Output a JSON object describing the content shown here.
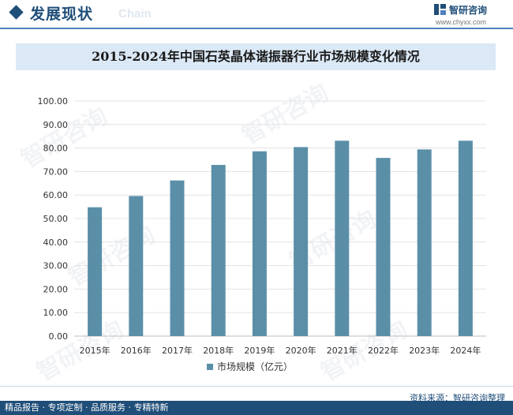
{
  "header": {
    "title": "发展现状",
    "title_en": "Chain"
  },
  "logo": {
    "name": "智研咨询",
    "url": "www.chyxx.com"
  },
  "watermark": "智研咨询",
  "chart_data": {
    "type": "bar",
    "title": "2015-2024年中国石英晶体谐振器行业市场规模变化情况",
    "categories": [
      "2015年",
      "2016年",
      "2017年",
      "2018年",
      "2019年",
      "2020年",
      "2021年",
      "2022年",
      "2023年",
      "2024年"
    ],
    "series": [
      {
        "name": "市场规模（亿元）",
        "values": [
          54.8,
          59.6,
          66.2,
          72.8,
          78.6,
          80.4,
          83.1,
          75.8,
          79.4,
          83.1
        ],
        "color": "#5b8fa8"
      }
    ],
    "ylim": [
      0,
      100
    ],
    "yticks": [
      "0.00",
      "10.00",
      "20.00",
      "30.00",
      "40.00",
      "50.00",
      "60.00",
      "70.00",
      "80.00",
      "90.00",
      "100.00"
    ],
    "grid": true,
    "legend": "bottom"
  },
  "footer": {
    "source": "资料来源：智研咨询整理",
    "slogan": "精品报告 · 专项定制 · 品质服务 · 专精特新"
  }
}
